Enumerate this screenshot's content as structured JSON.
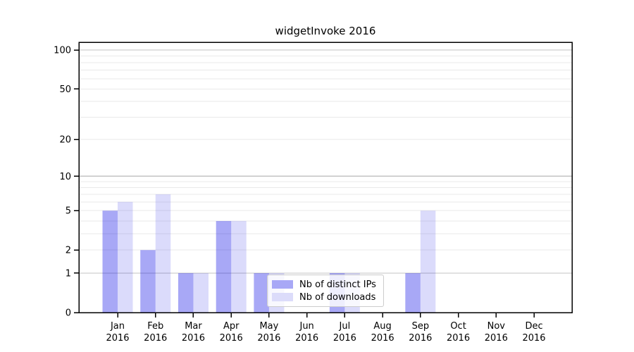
{
  "chart_data": {
    "type": "bar",
    "title": "widgetInvoke 2016",
    "categories": [
      "Jan",
      "Feb",
      "Mar",
      "Apr",
      "May",
      "Jun",
      "Jul",
      "Aug",
      "Sep",
      "Oct",
      "Nov",
      "Dec"
    ],
    "category_sublabel": "2016",
    "series": [
      {
        "name": "Nb of distinct IPs",
        "base_color": "#0000e6",
        "alpha": 0.34,
        "display_color": "#a8a8f6",
        "values": [
          5,
          2,
          1,
          4,
          1,
          0,
          1,
          0,
          1,
          0,
          0,
          0
        ]
      },
      {
        "name": "Nb of downloads",
        "base_color": "#0000e6",
        "alpha": 0.14,
        "display_color": "#dcdcfa",
        "values": [
          6,
          7,
          1,
          4,
          1,
          0,
          1,
          0,
          5,
          0,
          0,
          0
        ]
      }
    ],
    "yaxis": {
      "scale": "log1p",
      "ticks": [
        0,
        1,
        2,
        5,
        10,
        20,
        50,
        100
      ],
      "range": [
        0,
        115
      ]
    },
    "grid": {
      "major_values": [
        1,
        10,
        100
      ],
      "minor_values": [
        2,
        3,
        4,
        5,
        6,
        7,
        8,
        9,
        20,
        30,
        40,
        50,
        60,
        70,
        80,
        90
      ],
      "major_color": "#c3c3c3",
      "minor_color": "#e9e9e9"
    },
    "legend": {
      "location": "lower center"
    },
    "spine_color": "#000000",
    "tick_label_color": "#000000"
  }
}
